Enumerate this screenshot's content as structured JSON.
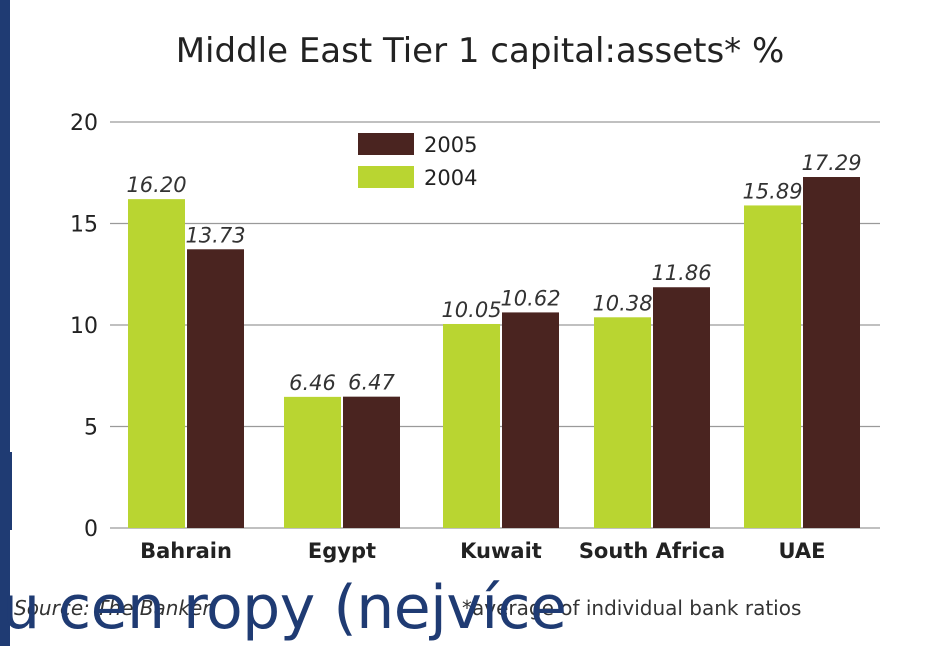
{
  "chart_data": {
    "type": "bar",
    "title": "Middle East Tier 1 capital:assets* %",
    "categories": [
      "Bahrain",
      "Egypt",
      "Kuwait",
      "South Africa",
      "UAE"
    ],
    "series": [
      {
        "name": "2004",
        "color": "#b9d531",
        "values": [
          16.2,
          6.46,
          10.05,
          10.38,
          15.89
        ],
        "labels": [
          "16.20",
          "6.46",
          "10.05",
          "10.38",
          "15.89"
        ]
      },
      {
        "name": "2005",
        "color": "#4a2420",
        "values": [
          13.73,
          6.47,
          10.62,
          11.86,
          17.29
        ],
        "labels": [
          "13.73",
          "6.47",
          "10.62",
          "11.86",
          "17.29"
        ]
      }
    ],
    "ylim": [
      0,
      20
    ],
    "yticks": [
      "0",
      "5",
      "10",
      "15",
      "20"
    ],
    "grid": true,
    "legend_position": "top-center",
    "xlabel": "",
    "ylabel": ""
  },
  "source": "Source: The Banker",
  "footnote": "*average of individual bank ratios",
  "overlay_text": "u cen ropy (nejvíce"
}
